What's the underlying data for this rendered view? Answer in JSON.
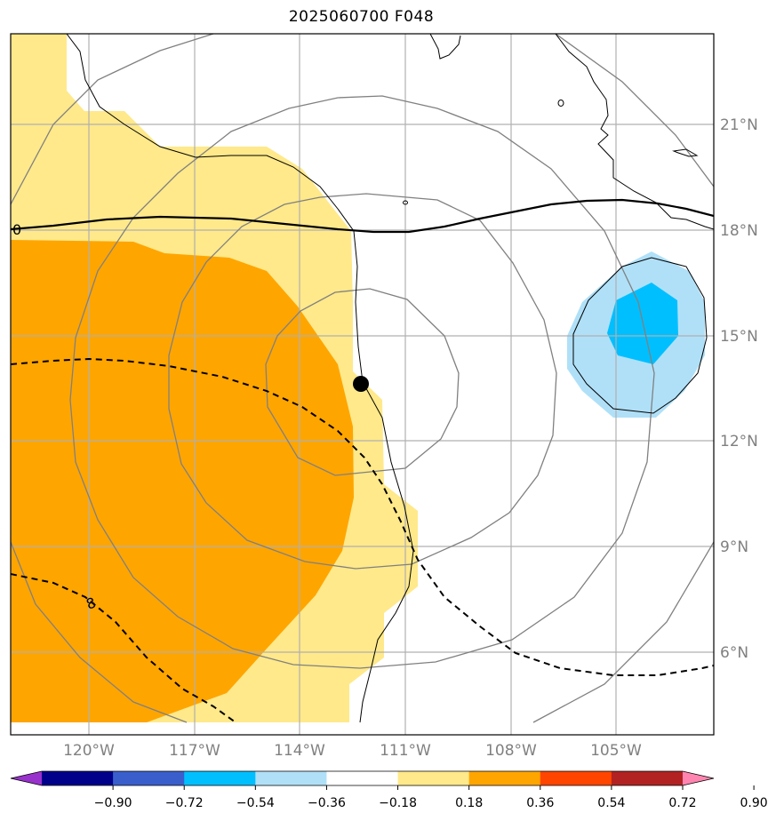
{
  "title": "2025060700 F048",
  "lon_ticks": [
    "120°W",
    "117°W",
    "114°W",
    "111°W",
    "108°W",
    "105°W"
  ],
  "lat_ticks": [
    "21°N",
    "18°N",
    "15°N",
    "12°N",
    "9°N",
    "6°N"
  ],
  "contour_labels": [
    "0",
    "8"
  ],
  "colorbar": {
    "ticks": [
      "−0.90",
      "−0.72",
      "−0.54",
      "−0.36",
      "−0.18",
      "0.18",
      "0.36",
      "0.54",
      "0.72",
      "0.90"
    ],
    "colors": [
      "#9932cc",
      "#00008b",
      "#3a5fcd",
      "#00bfff",
      "#b0e0f8",
      "#ffffff",
      "#ffe98a",
      "#ffa500",
      "#ff4500",
      "#b22222",
      "#ff85b0"
    ]
  },
  "colors": {
    "light_yellow": "#ffe98a",
    "orange": "#ffa500",
    "light_blue": "#b0e0f8",
    "deep_sky_blue": "#00bfff",
    "gridline": "#b0b0b0",
    "range_ring": "#808080"
  },
  "storm_center": {
    "lon": "112°W",
    "lat": "13.6°N"
  }
}
